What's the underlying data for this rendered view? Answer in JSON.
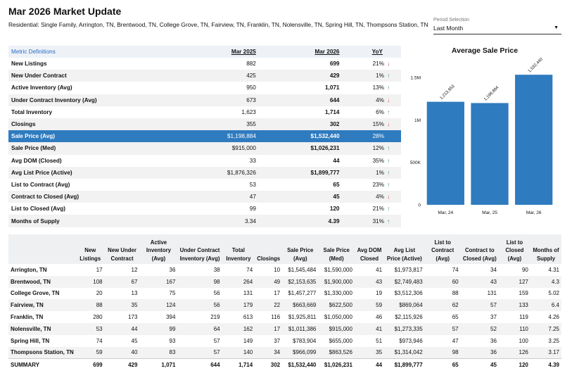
{
  "header": {
    "title": "Mar 2026 Market Update",
    "subtitle": "Residential: Single Family, Arrington, TN, Brentwood, TN, College Grove, TN, Fairview, TN, Franklin, TN, Nolensville, TN, Spring Hill, TN, Thompsons Station, TN"
  },
  "period": {
    "label": "Period Selection",
    "value": "Last Month"
  },
  "metrics": {
    "header": {
      "definitions": "Metric Definitions",
      "col1": "Mar 2025",
      "col2": "Mar 2026",
      "yoy": "YoY"
    },
    "rows": [
      {
        "name": "New Listings",
        "v1": "882",
        "v2": "699",
        "yoy": "21%",
        "dir": "down"
      },
      {
        "name": "New Under Contract",
        "v1": "425",
        "v2": "429",
        "yoy": "1%",
        "dir": "up"
      },
      {
        "name": "Active Inventory (Avg)",
        "v1": "950",
        "v2": "1,071",
        "yoy": "13%",
        "dir": "up"
      },
      {
        "name": "Under Contract Inventory (Avg)",
        "v1": "673",
        "v2": "644",
        "yoy": "4%",
        "dir": "down"
      },
      {
        "name": "Total Inventory",
        "v1": "1,623",
        "v2": "1,714",
        "yoy": "6%",
        "dir": "up"
      },
      {
        "name": "Closings",
        "v1": "355",
        "v2": "302",
        "yoy": "15%",
        "dir": "down"
      },
      {
        "name": "Sale Price (Avg)",
        "v1": "$1,198,884",
        "v2": "$1,532,440",
        "yoy": "28%",
        "dir": "none"
      },
      {
        "name": "Sale Price (Med)",
        "v1": "$915,000",
        "v2": "$1,026,231",
        "yoy": "12%",
        "dir": "up"
      },
      {
        "name": "Avg DOM (Closed)",
        "v1": "33",
        "v2": "44",
        "yoy": "35%",
        "dir": "up"
      },
      {
        "name": "Avg List Price (Active)",
        "v1": "$1,876,326",
        "v2": "$1,899,777",
        "yoy": "1%",
        "dir": "up"
      },
      {
        "name": "List to Contract (Avg)",
        "v1": "53",
        "v2": "65",
        "yoy": "23%",
        "dir": "up"
      },
      {
        "name": "Contract to Closed (Avg)",
        "v1": "47",
        "v2": "45",
        "yoy": "4%",
        "dir": "down"
      },
      {
        "name": "List to Closed (Avg)",
        "v1": "99",
        "v2": "120",
        "yoy": "21%",
        "dir": "up"
      },
      {
        "name": "Months of Supply",
        "v1": "3.34",
        "v2": "4.39",
        "yoy": "31%",
        "dir": "up"
      }
    ],
    "highlight_index": 6,
    "colors": {
      "up": "#2e9e4d",
      "down": "#d9342b",
      "highlight": "#2f7bbf"
    }
  },
  "chart_data": {
    "type": "bar",
    "title": "Average Sale Price",
    "categories": [
      "Mar, 24",
      "Mar, 25",
      "Mar, 26"
    ],
    "values": [
      1213953,
      1198884,
      1532440
    ],
    "value_labels": [
      "1,213,953",
      "1,198,884",
      "1,532,440"
    ],
    "yticks": [
      0,
      500000,
      1000000,
      1500000
    ],
    "ytick_labels": [
      "0",
      "500K",
      "1M",
      "1.5M"
    ],
    "ylim": [
      0,
      1650000
    ],
    "color": "#2f7bbf"
  },
  "table": {
    "columns": [
      "",
      "New Listings",
      "New Under Contract",
      "Active Inventory (Avg)",
      "Under Contract Inventory (Avg)",
      "Total Inventory",
      "Closings",
      "Sale Price (Avg)",
      "Sale Price (Med)",
      "Avg DOM Closed",
      "Avg List Price (Active)",
      "List to Contract (Avg)",
      "Contract to Closed (Avg)",
      "List to Closed (Avg)",
      "Months of Supply"
    ],
    "rows": [
      [
        "Arrington, TN",
        "17",
        "12",
        "36",
        "38",
        "74",
        "10",
        "$1,545,484",
        "$1,590,000",
        "41",
        "$1,973,817",
        "74",
        "34",
        "90",
        "4.31"
      ],
      [
        "Brentwood, TN",
        "108",
        "67",
        "167",
        "98",
        "264",
        "49",
        "$2,153,635",
        "$1,900,000",
        "43",
        "$2,749,483",
        "60",
        "43",
        "127",
        "4.3"
      ],
      [
        "College Grove, TN",
        "20",
        "13",
        "75",
        "56",
        "131",
        "17",
        "$1,457,277",
        "$1,330,000",
        "19",
        "$3,512,306",
        "88",
        "131",
        "159",
        "5.02"
      ],
      [
        "Fairview, TN",
        "88",
        "35",
        "124",
        "56",
        "179",
        "22",
        "$663,669",
        "$622,500",
        "59",
        "$869,064",
        "62",
        "57",
        "133",
        "6.4"
      ],
      [
        "Franklin, TN",
        "280",
        "173",
        "394",
        "219",
        "613",
        "116",
        "$1,925,811",
        "$1,050,000",
        "46",
        "$2,115,926",
        "65",
        "37",
        "119",
        "4.26"
      ],
      [
        "Nolensville, TN",
        "53",
        "44",
        "99",
        "64",
        "162",
        "17",
        "$1,011,386",
        "$915,000",
        "41",
        "$1,273,335",
        "57",
        "52",
        "110",
        "7.25"
      ],
      [
        "Spring Hill, TN",
        "74",
        "45",
        "93",
        "57",
        "149",
        "37",
        "$783,904",
        "$655,000",
        "51",
        "$973,946",
        "47",
        "36",
        "100",
        "3.25"
      ],
      [
        "Thompsons Station, TN",
        "59",
        "40",
        "83",
        "57",
        "140",
        "34",
        "$966,099",
        "$863,526",
        "35",
        "$1,314,042",
        "98",
        "36",
        "126",
        "3.17"
      ]
    ],
    "summary": [
      "SUMMARY",
      "699",
      "429",
      "1,071",
      "644",
      "1,714",
      "302",
      "$1,532,440",
      "$1,026,231",
      "44",
      "$1,899,777",
      "65",
      "45",
      "120",
      "4.39"
    ]
  }
}
